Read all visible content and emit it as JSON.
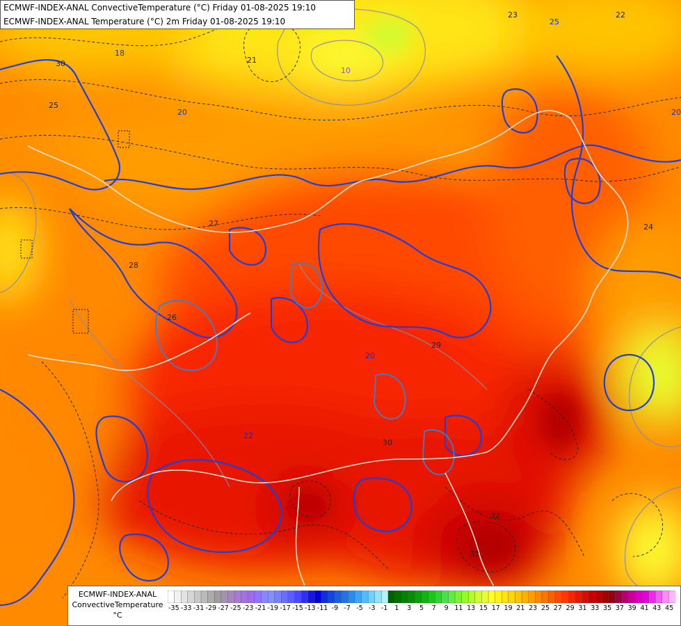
{
  "titles": {
    "line1": "ECMWF-INDEX-ANAL ConvectiveTemperature (°C) Friday 01-08-2025 19:10",
    "line2": "ECMWF-INDEX-ANAL Temperature (°C) 2m Friday 01-08-2025 19:10"
  },
  "legend": {
    "line1": "ECMWF-INDEX-ANAL",
    "line2": "ConvectiveTemperature",
    "unit": "°C",
    "tick_labels": [
      "-35",
      "-33",
      "-31",
      "-29",
      "-27",
      "-25",
      "-23",
      "-21",
      "-19",
      "-17",
      "-15",
      "-13",
      "-11",
      "-9",
      "-7",
      "-5",
      "-3",
      "-1",
      "1",
      "3",
      "5",
      "7",
      "9",
      "11",
      "13",
      "15",
      "17",
      "19",
      "21",
      "23",
      "25",
      "27",
      "29",
      "31",
      "33",
      "35",
      "37",
      "39",
      "41",
      "43",
      "45"
    ],
    "colors": [
      "#ffffff",
      "#f2f2f2",
      "#e4e4e4",
      "#d6d6d6",
      "#c8c8c8",
      "#bababa",
      "#acacac",
      "#9e9e9e",
      "#a493b0",
      "#a586c2",
      "#a87ad6",
      "#a46ee6",
      "#9f6bf2",
      "#9273fb",
      "#8a86ff",
      "#7f90ff",
      "#7580ff",
      "#6a6eff",
      "#5c5cff",
      "#4848ff",
      "#2f2ff5",
      "#1515ea",
      "#0000de",
      "#0a30d6",
      "#1447d8",
      "#1c5ee0",
      "#2274e6",
      "#2b8aee",
      "#3ca4f4",
      "#52bbf8",
      "#6ed2fb",
      "#8ee4fd",
      "#b0f2fe",
      "#006000",
      "#007000",
      "#008100",
      "#039103",
      "#09a209",
      "#13b313",
      "#1ec41e",
      "#2dd42d",
      "#46e246",
      "#5fee3f",
      "#78f532",
      "#97f82d",
      "#b4fb2d",
      "#d1fc2e",
      "#e8fc2f",
      "#fcfc30",
      "#fff21e",
      "#ffe414",
      "#ffd50a",
      "#ffc400",
      "#ffb000",
      "#ff9c00",
      "#ff8800",
      "#ff7300",
      "#ff5e00",
      "#ff4a00",
      "#ff3700",
      "#f82600",
      "#e81800",
      "#d90c00",
      "#c80000",
      "#b40000",
      "#a00000",
      "#900010",
      "#a00040",
      "#b40070",
      "#c8009a",
      "#d800c0",
      "#e400dc",
      "#ee28ee",
      "#f45af4",
      "#f88cf8",
      "#fcb8fc"
    ]
  },
  "map_labels": [
    {
      "text": "25",
      "color": "#222"
    },
    {
      "text": "30",
      "color": "#222"
    },
    {
      "text": "21",
      "color": "#222"
    },
    {
      "text": "20",
      "color": "#1030c0"
    },
    {
      "text": "23",
      "color": "#222"
    },
    {
      "text": "22",
      "color": "#222"
    },
    {
      "text": "27",
      "color": "#222"
    },
    {
      "text": "28",
      "color": "#222"
    },
    {
      "text": "26",
      "color": "#222"
    },
    {
      "text": "29",
      "color": "#222"
    },
    {
      "text": "30",
      "color": "#222"
    },
    {
      "text": "32",
      "color": "#222"
    },
    {
      "text": "33",
      "color": "#222"
    },
    {
      "text": "20",
      "color": "#1030c0"
    },
    {
      "text": "22",
      "color": "#1030c0"
    },
    {
      "text": "18",
      "color": "#1030c0"
    },
    {
      "text": "24",
      "color": "#222"
    },
    {
      "text": "25",
      "color": "#1030c0"
    },
    {
      "text": "10",
      "color": "#8855cc"
    },
    {
      "text": "20",
      "color": "#1030c0"
    }
  ]
}
